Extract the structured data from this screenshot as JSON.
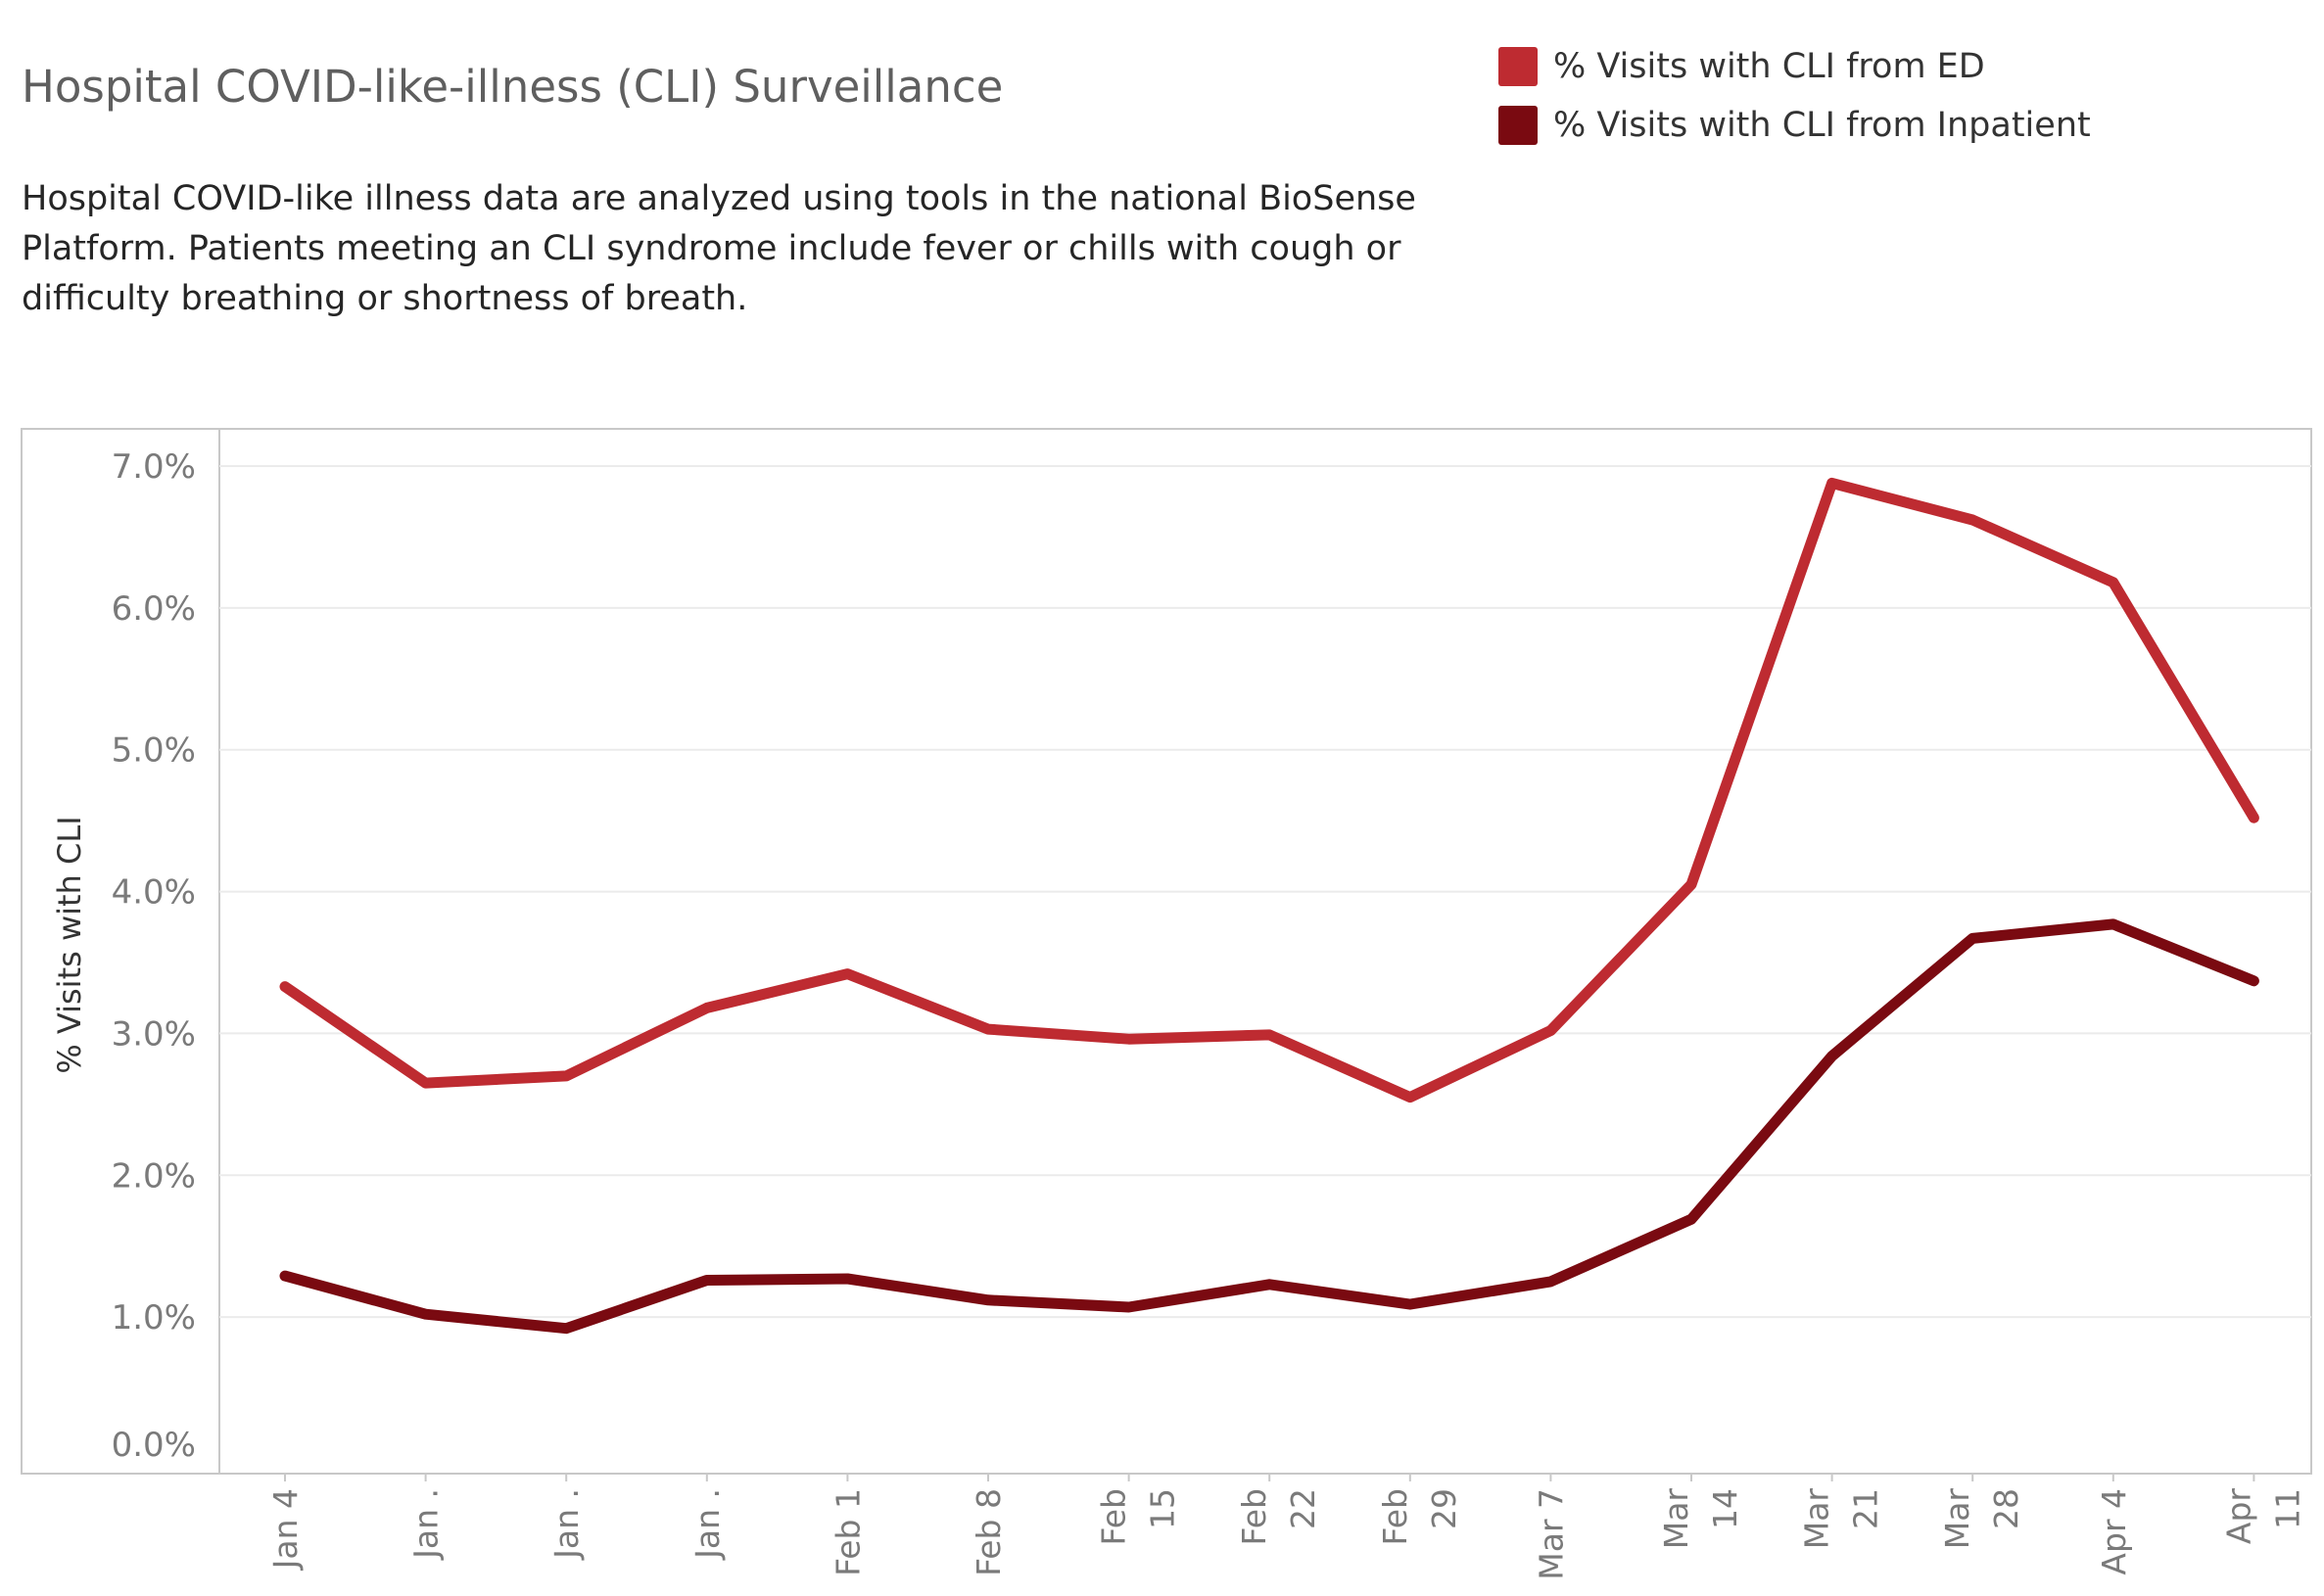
{
  "header": {
    "title": "Hospital COVID-like-illness (CLI) Surveillance",
    "description": "Hospital COVID-like illness data are analyzed using tools in the national BioSense Platform. Patients meeting an CLI syndrome include fever or chills with cough or difficulty breathing or shortness of breath."
  },
  "legend": {
    "items": [
      {
        "label": "% Visits with CLI from ED",
        "color": "#be2b31"
      },
      {
        "label": "% Visits with CLI from Inpatient",
        "color": "#7a0a11"
      }
    ]
  },
  "chart_data": {
    "type": "line",
    "title": "",
    "xlabel": "",
    "ylabel": "% Visits with CLI",
    "categories": [
      "Jan 4",
      "Jan .",
      "Jan .",
      "Jan .",
      "Feb 1",
      "Feb 8",
      "Feb 15",
      "Feb 22",
      "Feb 29",
      "Mar 7",
      "Mar 14",
      "Mar 21",
      "Mar 28",
      "Apr 4",
      "Apr 11"
    ],
    "ylim": [
      0,
      7.2
    ],
    "yticks": [
      "0.0%",
      "1.0%",
      "2.0%",
      "3.0%",
      "4.0%",
      "5.0%",
      "6.0%",
      "7.0%"
    ],
    "grid": true,
    "legend_position": "top-right",
    "series": [
      {
        "name": "% Visits with CLI from ED",
        "color": "#be2b31",
        "values": [
          3.33,
          2.65,
          2.7,
          3.18,
          3.42,
          3.03,
          2.96,
          2.99,
          2.55,
          3.02,
          4.05,
          6.88,
          6.62,
          6.18,
          4.52
        ]
      },
      {
        "name": "% Visits with CLI from Inpatient",
        "color": "#7a0a11",
        "values": [
          1.29,
          1.02,
          0.92,
          1.26,
          1.27,
          1.12,
          1.07,
          1.23,
          1.09,
          1.25,
          1.69,
          2.84,
          3.67,
          3.77,
          3.37
        ]
      }
    ]
  }
}
